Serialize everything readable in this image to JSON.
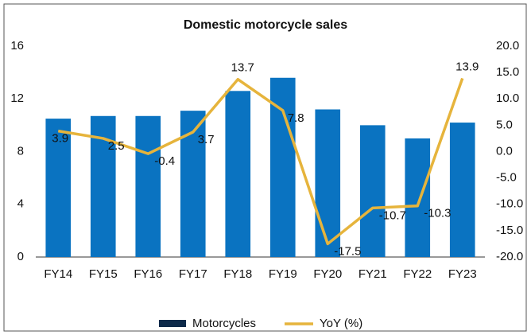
{
  "chart_data": {
    "type": "bar_line",
    "title": "Domestic motorcycle sales",
    "categories": [
      "FY14",
      "FY15",
      "FY16",
      "FY17",
      "FY18",
      "FY19",
      "FY20",
      "FY21",
      "FY22",
      "FY23"
    ],
    "series": [
      {
        "name": "Motorcycles",
        "type": "bar",
        "color": "#0a73c1",
        "legend_color": "#0d2a4a",
        "values": [
          10.5,
          10.7,
          10.7,
          11.1,
          12.6,
          13.6,
          11.2,
          10.0,
          9.0,
          10.2
        ]
      },
      {
        "name": "YoY (%)",
        "type": "line",
        "axis": "y2",
        "color": "#e6b43c",
        "values": [
          3.9,
          2.5,
          -0.4,
          3.7,
          13.7,
          7.8,
          -17.5,
          -10.7,
          -10.3,
          13.9
        ]
      }
    ],
    "ylim": [
      0,
      16
    ],
    "yticks": [
      0,
      4,
      8,
      12,
      16
    ],
    "y2lim": [
      -20,
      20
    ],
    "y2ticks": [
      {
        "value": -20,
        "label": "-20.0"
      },
      {
        "value": -15,
        "label": "-15.0"
      },
      {
        "value": -10,
        "label": "-10.0"
      },
      {
        "value": -5,
        "label": "-5.0"
      },
      {
        "value": 0,
        "label": "0.0"
      },
      {
        "value": 5,
        "label": "5.0"
      },
      {
        "value": 10,
        "label": "10.0"
      },
      {
        "value": 15,
        "label": "15.0"
      },
      {
        "value": 20,
        "label": "20.0"
      }
    ]
  }
}
